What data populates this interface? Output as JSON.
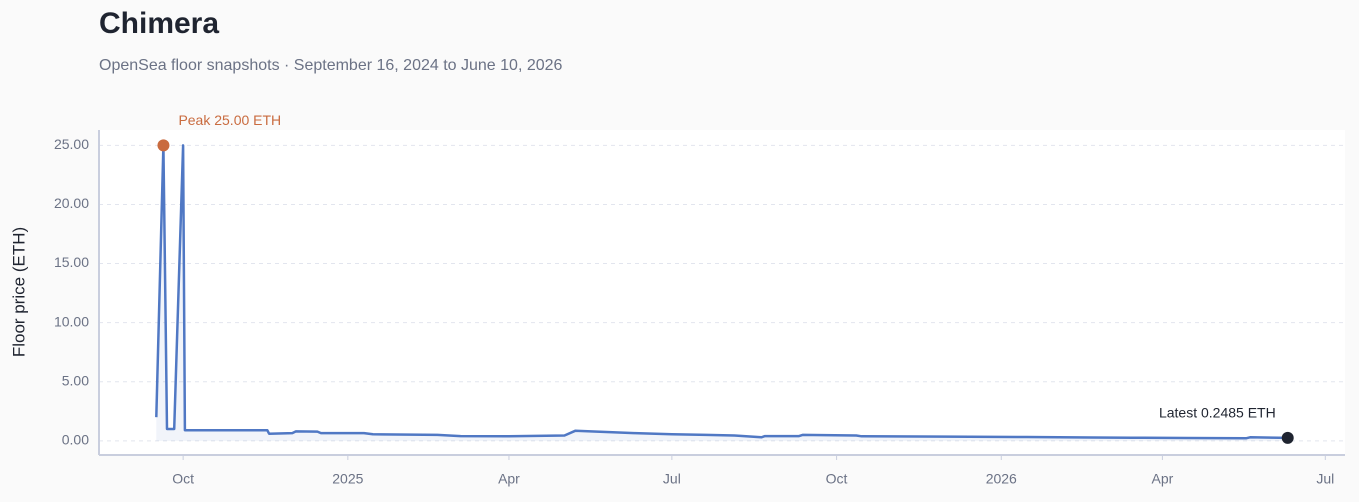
{
  "chart_data": {
    "type": "line",
    "title": "Chimera",
    "subtitle": "OpenSea floor snapshots · September 16, 2024 to June 10, 2026",
    "y_label": "Floor price (ETH)",
    "peak_label": "Peak 25.00 ETH",
    "latest_label": "Latest 0.2485 ETH",
    "peak_color": "#c96b3f",
    "latest_color": "#1f2430",
    "grid": true,
    "xlim": [
      "2024-08-15",
      "2026-07-12"
    ],
    "xticks": [
      {
        "value": "2024-10-01",
        "label": "Oct"
      },
      {
        "value": "2025-01-01",
        "label": "2025"
      },
      {
        "value": "2025-04-01",
        "label": "Apr"
      },
      {
        "value": "2025-07-01",
        "label": "Jul"
      },
      {
        "value": "2025-10-01",
        "label": "Oct"
      },
      {
        "value": "2026-01-01",
        "label": "2026"
      },
      {
        "value": "2026-04-01",
        "label": "Apr"
      },
      {
        "value": "2026-07-01",
        "label": "Jul"
      }
    ],
    "ylim": [
      -1.2,
      26.3
    ],
    "yticks": [
      {
        "value": 0,
        "label": "0.00"
      },
      {
        "value": 5,
        "label": "5.00"
      },
      {
        "value": 10,
        "label": "10.00"
      },
      {
        "value": 15,
        "label": "15.00"
      },
      {
        "value": 20,
        "label": "20.00"
      },
      {
        "value": 25,
        "label": "25.00"
      }
    ],
    "x": [
      "2024-09-16",
      "2024-09-20",
      "2024-09-22",
      "2024-09-26",
      "2024-10-01",
      "2024-10-02",
      "2024-11-17",
      "2024-11-18",
      "2024-12-01",
      "2024-12-03",
      "2024-12-15",
      "2024-12-17",
      "2025-01-10",
      "2025-01-15",
      "2025-02-20",
      "2025-03-05",
      "2025-04-01",
      "2025-05-02",
      "2025-05-08",
      "2025-06-10",
      "2025-07-01",
      "2025-07-20",
      "2025-08-05",
      "2025-08-20",
      "2025-08-22",
      "2025-09-10",
      "2025-09-12",
      "2025-10-12",
      "2025-10-15",
      "2025-12-01",
      "2026-01-15",
      "2026-02-20",
      "2026-03-15",
      "2026-04-15",
      "2026-05-18",
      "2026-05-20",
      "2026-06-10"
    ],
    "series": [
      {
        "name": "Floor price",
        "color": "#5078c4",
        "values": [
          2.0,
          25.0,
          1.0,
          1.0,
          25.0,
          0.9,
          0.9,
          0.6,
          0.65,
          0.8,
          0.78,
          0.65,
          0.65,
          0.55,
          0.5,
          0.4,
          0.38,
          0.45,
          0.85,
          0.65,
          0.55,
          0.5,
          0.45,
          0.3,
          0.4,
          0.4,
          0.5,
          0.45,
          0.38,
          0.36,
          0.32,
          0.28,
          0.26,
          0.24,
          0.22,
          0.3,
          0.2485
        ]
      }
    ]
  }
}
